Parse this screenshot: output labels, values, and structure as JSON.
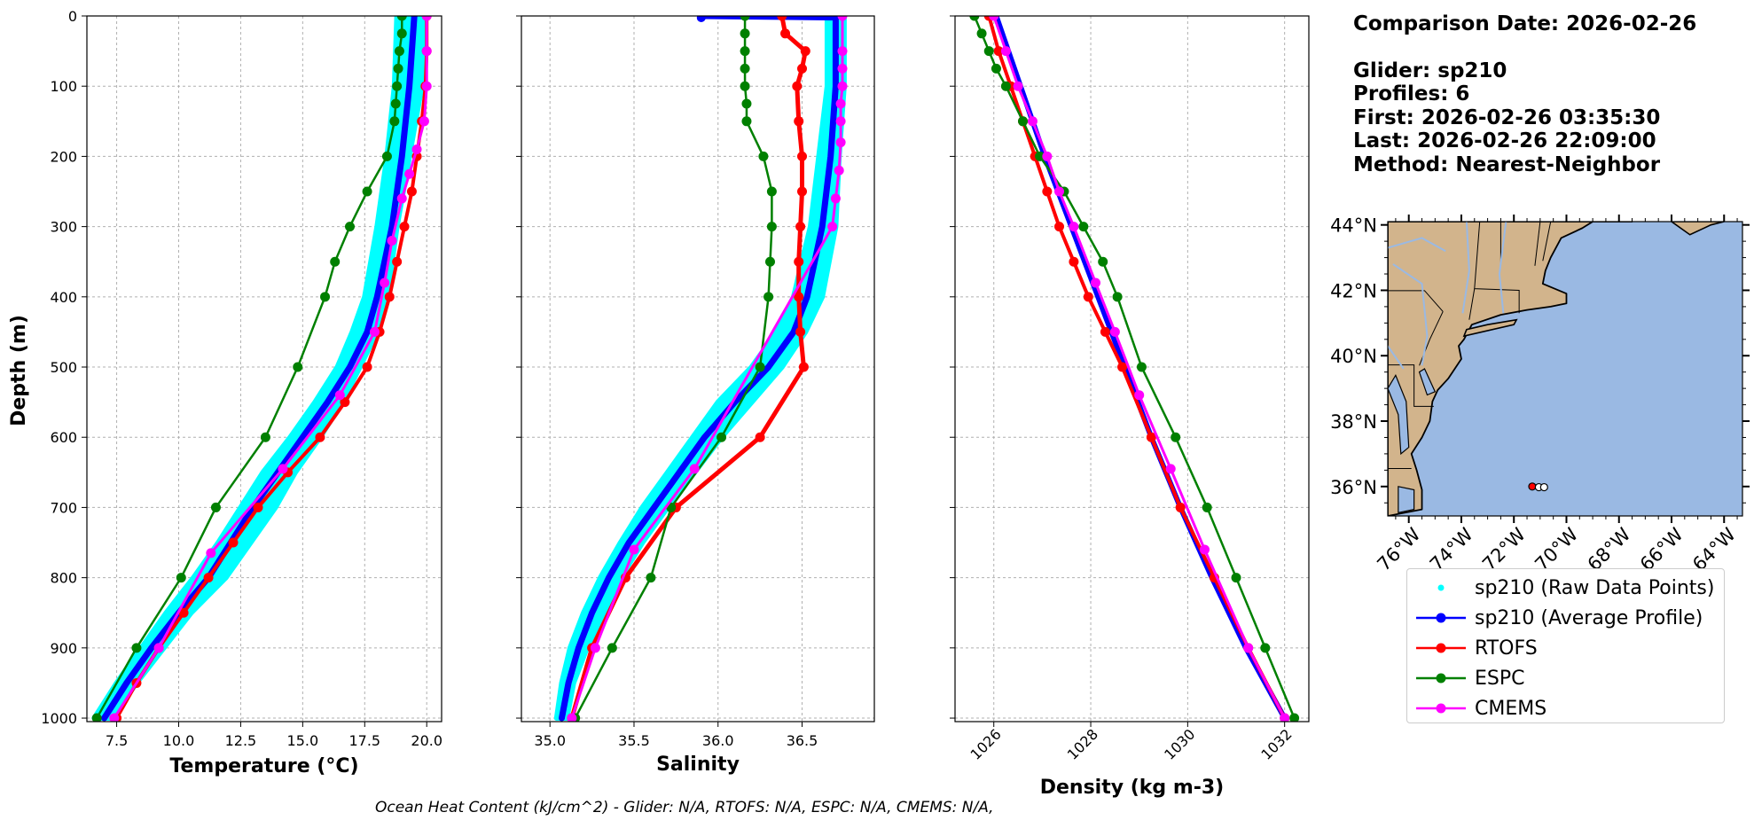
{
  "comparison": {
    "title": "Comparison Date: 2026-02-26",
    "glider": "Glider: sp210",
    "profiles": "Profiles: 6",
    "first": "First: 2026-02-26 03:35:30",
    "last": "Last: 2026-02-26 22:09:00",
    "method": "Method: Nearest-Neighbor"
  },
  "footer": {
    "ohc": "Ocean Heat Content (kJ/cm^2) - Glider: N/A,  RTOFS: N/A,  ESPC: N/A,  CMEMS: N/A,"
  },
  "colors": {
    "raw": "#00ffff",
    "glider": "#0000ff",
    "rtofs": "#ff0000",
    "espc": "#008000",
    "cmems": "#ff00ff",
    "land": "#d2b48c",
    "ocean": "#9ab9e3",
    "grid": "#b0b0b0"
  },
  "legend": [
    {
      "key": "raw",
      "label": "sp210 (Raw Data Points)",
      "style": "dot"
    },
    {
      "key": "glider",
      "label": "sp210 (Average Profile)",
      "style": "line"
    },
    {
      "key": "rtofs",
      "label": "RTOFS",
      "style": "line"
    },
    {
      "key": "espc",
      "label": "ESPC",
      "style": "line"
    },
    {
      "key": "cmems",
      "label": "CMEMS",
      "style": "line"
    }
  ],
  "chart_data": [
    {
      "type": "line",
      "xlabel": "Temperature (°C)",
      "ylabel": "Depth (m)",
      "xlim": [
        6.3,
        20.6
      ],
      "ylim": [
        1005,
        0
      ],
      "xticks": [
        "7.5",
        "10.0",
        "12.5",
        "15.0",
        "17.5",
        "20.0"
      ],
      "xtick_values": [
        7.5,
        10.0,
        12.5,
        15.0,
        17.5,
        20.0
      ],
      "yticks": [
        0,
        100,
        200,
        300,
        400,
        500,
        600,
        700,
        800,
        900,
        1000
      ],
      "grid": true,
      "raw_band": {
        "depth": [
          0,
          100,
          200,
          300,
          400,
          450,
          500,
          550,
          600,
          650,
          700,
          750,
          800,
          850,
          900,
          950,
          1000
        ],
        "min": [
          18.8,
          18.7,
          18.4,
          18.0,
          17.5,
          17.0,
          16.4,
          15.5,
          14.5,
          13.4,
          12.5,
          11.6,
          10.6,
          9.5,
          8.5,
          7.5,
          6.6
        ],
        "max": [
          19.9,
          19.8,
          19.3,
          18.8,
          18.4,
          18.0,
          17.3,
          16.6,
          15.7,
          14.7,
          13.9,
          12.9,
          11.9,
          10.5,
          9.4,
          8.3,
          7.3
        ]
      },
      "series": [
        {
          "name": "sp210 (Average Profile)",
          "key": "glider",
          "width": 7,
          "markers": false,
          "depth": [
            0,
            50,
            100,
            200,
            300,
            400,
            450,
            500,
            550,
            600,
            650,
            700,
            750,
            800,
            850,
            900,
            950,
            1000
          ],
          "values": [
            19.5,
            19.4,
            19.3,
            19.0,
            18.6,
            18.0,
            17.6,
            16.9,
            16.0,
            15.0,
            14.0,
            13.0,
            12.1,
            11.2,
            10.0,
            8.9,
            7.9,
            7.0
          ]
        },
        {
          "name": "RTOFS",
          "key": "rtofs",
          "width": 4,
          "markers": true,
          "depth": [
            0,
            50,
            100,
            150,
            200,
            250,
            300,
            350,
            400,
            450,
            500,
            550,
            600,
            650,
            700,
            750,
            800,
            850,
            900,
            950,
            1000
          ],
          "values": [
            20.0,
            20.0,
            19.95,
            19.8,
            19.6,
            19.4,
            19.1,
            18.8,
            18.5,
            18.1,
            17.6,
            16.7,
            15.7,
            14.4,
            13.2,
            12.2,
            11.2,
            10.2,
            9.2,
            8.3,
            7.5
          ]
        },
        {
          "name": "ESPC",
          "key": "espc",
          "width": 2.5,
          "markers": true,
          "depth": [
            0,
            25,
            50,
            75,
            100,
            125,
            150,
            200,
            250,
            300,
            350,
            400,
            500,
            600,
            700,
            800,
            900,
            1000
          ],
          "values": [
            19.0,
            19.0,
            18.9,
            18.85,
            18.8,
            18.75,
            18.7,
            18.4,
            17.6,
            16.9,
            16.3,
            15.9,
            14.8,
            13.5,
            11.5,
            10.1,
            8.3,
            6.7
          ]
        },
        {
          "name": "CMEMS",
          "key": "cmems",
          "width": 3,
          "markers": true,
          "depth": [
            0,
            50,
            100,
            150,
            190,
            225,
            260,
            320,
            380,
            450,
            540,
            645,
            765,
            900,
            1000
          ],
          "values": [
            20.0,
            20.0,
            20.0,
            19.9,
            19.6,
            19.3,
            19.0,
            18.6,
            18.3,
            17.9,
            16.5,
            14.2,
            11.3,
            9.2,
            7.4
          ]
        }
      ]
    },
    {
      "type": "line",
      "xlabel": "Salinity",
      "ylabel": "",
      "xlim": [
        34.83,
        36.93
      ],
      "ylim": [
        1005,
        0
      ],
      "xticks": [
        "35.0",
        "35.5",
        "36.0",
        "36.5"
      ],
      "xtick_values": [
        35.0,
        35.5,
        36.0,
        36.5
      ],
      "yticks": [
        0,
        100,
        200,
        300,
        400,
        500,
        600,
        700,
        800,
        900,
        1000
      ],
      "grid": true,
      "raw_band": {
        "depth": [
          0,
          100,
          200,
          300,
          400,
          450,
          500,
          550,
          600,
          650,
          700,
          750,
          800,
          850,
          900,
          950,
          1000
        ],
        "min": [
          36.65,
          36.65,
          36.6,
          36.55,
          36.45,
          36.35,
          36.2,
          36.0,
          35.85,
          35.7,
          35.55,
          35.42,
          35.3,
          35.2,
          35.12,
          35.07,
          35.04
        ],
        "max": [
          36.75,
          36.75,
          36.72,
          36.7,
          36.62,
          36.52,
          36.38,
          36.2,
          36.02,
          35.86,
          35.7,
          35.55,
          35.42,
          35.32,
          35.22,
          35.14,
          35.1
        ]
      },
      "series": [
        {
          "name": "sp210 (Average Profile)",
          "key": "glider",
          "width": 7,
          "markers": false,
          "depth": [
            0,
            2,
            50,
            100,
            200,
            300,
            400,
            450,
            500,
            550,
            600,
            650,
            700,
            750,
            800,
            850,
            900,
            950,
            1000
          ],
          "values": [
            35.9,
            36.7,
            36.7,
            36.7,
            36.67,
            36.62,
            36.53,
            36.45,
            36.3,
            36.1,
            35.92,
            35.77,
            35.62,
            35.47,
            35.35,
            35.25,
            35.17,
            35.11,
            35.07
          ]
        },
        {
          "name": "RTOFS",
          "key": "rtofs",
          "width": 5,
          "markers": true,
          "depth": [
            0,
            25,
            50,
            75,
            100,
            150,
            200,
            250,
            300,
            350,
            400,
            450,
            500,
            600,
            700,
            800,
            900,
            1000
          ],
          "values": [
            36.38,
            36.4,
            36.52,
            36.5,
            36.47,
            36.48,
            36.5,
            36.5,
            36.49,
            36.48,
            36.48,
            36.49,
            36.51,
            36.25,
            35.75,
            35.45,
            35.25,
            35.13
          ]
        },
        {
          "name": "ESPC",
          "key": "espc",
          "width": 2.5,
          "markers": true,
          "depth": [
            0,
            25,
            50,
            75,
            100,
            125,
            150,
            200,
            250,
            300,
            350,
            400,
            500,
            600,
            700,
            800,
            900,
            1000
          ],
          "values": [
            36.16,
            36.16,
            36.16,
            36.16,
            36.16,
            36.17,
            36.17,
            36.27,
            36.32,
            36.32,
            36.31,
            36.3,
            36.25,
            36.02,
            35.72,
            35.6,
            35.37,
            35.15
          ]
        },
        {
          "name": "CMEMS",
          "key": "cmems",
          "width": 3,
          "markers": true,
          "depth": [
            0,
            50,
            75,
            100,
            125,
            150,
            180,
            220,
            260,
            300,
            645,
            760,
            900,
            1000
          ],
          "values": [
            36.74,
            36.74,
            36.74,
            36.74,
            36.73,
            36.73,
            36.73,
            36.72,
            36.7,
            36.68,
            35.86,
            35.5,
            35.27,
            35.13
          ]
        }
      ]
    },
    {
      "type": "line",
      "xlabel": "Density (kg m-3)",
      "ylabel": "",
      "xlim": [
        1025.2,
        1032.5
      ],
      "ylim": [
        1005,
        0
      ],
      "xticks": [
        "1026",
        "1028",
        "1030",
        "1032"
      ],
      "xtick_values": [
        1026,
        1028,
        1030,
        1032
      ],
      "yticks": [
        0,
        100,
        200,
        300,
        400,
        500,
        600,
        700,
        800,
        900,
        1000
      ],
      "grid": true,
      "series": [
        {
          "name": "sp210 (Average Profile)",
          "key": "glider",
          "width": 6,
          "markers": false,
          "depth": [
            0,
            100,
            200,
            300,
            400,
            500,
            600,
            700,
            800,
            900,
            1000
          ],
          "values": [
            1026.05,
            1026.55,
            1027.05,
            1027.6,
            1028.15,
            1028.7,
            1029.25,
            1029.85,
            1030.5,
            1031.2,
            1032.0
          ]
        },
        {
          "name": "RTOFS",
          "key": "rtofs",
          "width": 4,
          "markers": true,
          "depth": [
            0,
            50,
            100,
            150,
            200,
            250,
            300,
            350,
            400,
            450,
            500,
            600,
            700,
            800,
            900,
            1000
          ],
          "values": [
            1025.9,
            1026.1,
            1026.35,
            1026.6,
            1026.85,
            1027.1,
            1027.35,
            1027.65,
            1027.95,
            1028.3,
            1028.65,
            1029.25,
            1029.85,
            1030.55,
            1031.25,
            1032.0
          ]
        },
        {
          "name": "ESPC",
          "key": "espc",
          "width": 2.5,
          "markers": true,
          "depth": [
            0,
            25,
            50,
            75,
            100,
            150,
            200,
            250,
            300,
            350,
            400,
            500,
            600,
            700,
            800,
            900,
            1000
          ],
          "values": [
            1025.6,
            1025.75,
            1025.9,
            1026.05,
            1026.25,
            1026.6,
            1026.95,
            1027.45,
            1027.85,
            1028.25,
            1028.55,
            1029.05,
            1029.75,
            1030.4,
            1031.0,
            1031.6,
            1032.2
          ]
        },
        {
          "name": "CMEMS",
          "key": "cmems",
          "width": 3,
          "markers": true,
          "depth": [
            0,
            50,
            100,
            150,
            200,
            250,
            300,
            380,
            450,
            540,
            645,
            760,
            900,
            1000
          ],
          "values": [
            1026.0,
            1026.25,
            1026.5,
            1026.8,
            1027.1,
            1027.35,
            1027.65,
            1028.1,
            1028.5,
            1029.0,
            1029.65,
            1030.35,
            1031.25,
            1032.0
          ]
        }
      ]
    }
  ],
  "map": {
    "lat_ticks": [
      "44°N",
      "42°N",
      "40°N",
      "38°N",
      "36°N"
    ],
    "lat_values": [
      44,
      42,
      40,
      38,
      36
    ],
    "lon_ticks": [
      "76°W",
      "74°W",
      "72°W",
      "70°W",
      "68°W",
      "66°W",
      "64°W"
    ],
    "lon_values": [
      -76,
      -74,
      -72,
      -70,
      -68,
      -66,
      -64
    ],
    "extent": {
      "lon": [
        -76.8,
        -63.3
      ],
      "lat": [
        35.1,
        44.1
      ]
    },
    "glider_positions": [
      {
        "lon": -71.3,
        "lat": 36.0
      },
      {
        "lon": -71.05,
        "lat": 35.98
      },
      {
        "lon": -70.85,
        "lat": 35.98
      }
    ]
  }
}
